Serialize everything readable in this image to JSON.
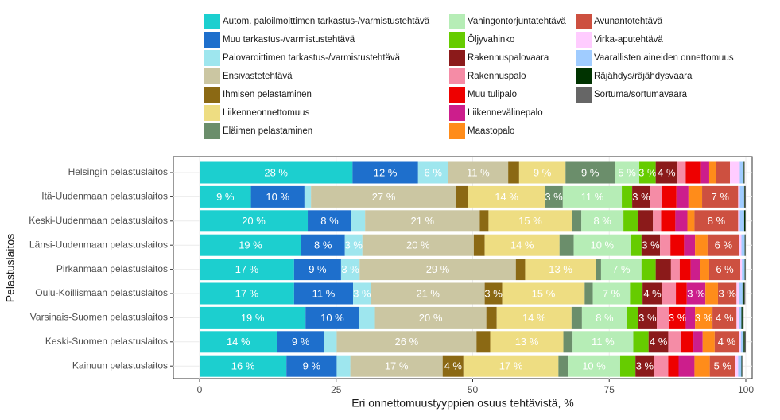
{
  "chart_data": {
    "type": "stacked-barh",
    "x_label": "Eri onnettomuustyyppien osuus tehtävistä, %",
    "y_label": "Pelastuslaitos",
    "legend": "top",
    "grid": true,
    "xlim": [
      0,
      100
    ],
    "xticks": [
      0,
      25,
      50,
      75,
      100
    ],
    "categories": [
      "Helsingin pelastuslaitos",
      "Itä-Uudenmaan pelastuslaitos",
      "Keski-Uudenmaan pelastuslaitos",
      "Länsi-Uudenmaan pelastuslaitos",
      "Pirkanmaan pelastuslaitos",
      "Oulu-Koillismaan pelastuslaitos",
      "Varsinais-Suomen pelastuslaitos",
      "Keski-Suomen pelastuslaitos",
      "Kainuun pelastuslaitos"
    ],
    "series": [
      {
        "name": "Autom. paloilmoittimen tarkastus-/varmistustehtävä",
        "color": "#1ccfcf",
        "values": [
          28,
          9.4,
          19.8,
          18.6,
          17.3,
          17.3,
          19.4,
          14.2,
          15.9
        ],
        "value_labels": [
          "28 %",
          "9 %",
          "20 %",
          "19 %",
          "17 %",
          "17 %",
          "19 %",
          "14 %",
          "16 %"
        ]
      },
      {
        "name": "Muu tarkastus-/varmistustehtävä",
        "color": "#1e6fcc",
        "values": [
          12,
          9.8,
          8,
          8,
          8.6,
          10.8,
          9.8,
          8.6,
          9.2
        ],
        "value_labels": [
          "12 %",
          "10 %",
          "8 %",
          "8 %",
          "9 %",
          "11 %",
          "10 %",
          "9 %",
          "9 %"
        ]
      },
      {
        "name": "Palovaroittimen tarkastus-/varmistustehtävä",
        "color": "#9ee6ee",
        "values": [
          5.5,
          1.2,
          2.5,
          3.2,
          3.4,
          3.3,
          2.9,
          2.3,
          2.5
        ],
        "value_labels": [
          "6 %",
          null,
          null,
          "3 %",
          "3 %",
          "3 %",
          null,
          null,
          null
        ]
      },
      {
        "name": "Ensivastetehtävä",
        "color": "#cbc6a2",
        "values": [
          11,
          26.6,
          21,
          20.4,
          28.6,
          20.8,
          20.4,
          25.6,
          16.9
        ],
        "value_labels": [
          "11 %",
          "27 %",
          "21 %",
          "20 %",
          "29 %",
          "21 %",
          "20 %",
          "26 %",
          "17 %"
        ]
      },
      {
        "name": "Ihmisen pelastaminen",
        "color": "#8b6914",
        "values": [
          2,
          2.2,
          1.6,
          2,
          1.7,
          3.2,
          1.9,
          2.5,
          3.8
        ],
        "value_labels": [
          null,
          null,
          null,
          null,
          null,
          "3 %",
          null,
          null,
          "4 %"
        ]
      },
      {
        "name": "Liikenneonnettomuus",
        "color": "#eedd82",
        "values": [
          8.5,
          14,
          15.3,
          13.7,
          13,
          15.1,
          13.7,
          13.4,
          17.4
        ],
        "value_labels": [
          "9 %",
          "14 %",
          "15 %",
          "14 %",
          "13 %",
          "15 %",
          "14 %",
          "13 %",
          "17 %"
        ]
      },
      {
        "name": "Eläimen pelastaminen",
        "color": "#6b8e6b",
        "values": [
          9,
          3.3,
          1.7,
          2.6,
          0.9,
          1.5,
          1.9,
          1.7,
          1.7
        ],
        "value_labels": [
          "9 %",
          "3 %",
          null,
          null,
          null,
          null,
          null,
          null,
          null
        ]
      },
      {
        "name": "Vahingontorjuntatehtävä",
        "color": "#b6edb6",
        "values": [
          4.5,
          10.8,
          7.7,
          10.4,
          7.4,
          6.8,
          8.3,
          11.1,
          9.6
        ],
        "value_labels": [
          "5 %",
          "11 %",
          "8 %",
          "10 %",
          "7 %",
          "7 %",
          "8 %",
          "11 %",
          "10 %"
        ]
      },
      {
        "name": "Öljyvahinko",
        "color": "#66cc00",
        "values": [
          3,
          1.9,
          2.6,
          2,
          2.6,
          2.3,
          2,
          2.8,
          2.8
        ],
        "value_labels": [
          "3 %",
          null,
          null,
          null,
          null,
          null,
          null,
          null,
          null
        ]
      },
      {
        "name": "Rakennuspalovaara",
        "color": "#8b1a1a",
        "values": [
          4,
          3.3,
          2.8,
          3.4,
          2.8,
          3.6,
          3.4,
          3.6,
          3.4
        ],
        "value_labels": [
          "4 %",
          "3 %",
          null,
          "3 %",
          null,
          "4 %",
          "3 %",
          "4 %",
          "3 %"
        ]
      },
      {
        "name": "Rakennuspalo",
        "color": "#f58ca6",
        "values": [
          1.5,
          2.2,
          1.5,
          1.9,
          1.6,
          2.5,
          2.3,
          2.3,
          2.6
        ]
      },
      {
        "name": "Muu tulipalo",
        "color": "#ee0000",
        "values": [
          2.8,
          2.6,
          2.6,
          2.5,
          2,
          2,
          3,
          2.3,
          1.9
        ],
        "value_labels": [
          null,
          null,
          null,
          null,
          null,
          null,
          "3 %",
          null,
          null
        ]
      },
      {
        "name": "Liikennevälinepalo",
        "color": "#cc1e8c",
        "values": [
          1.5,
          2.2,
          2.2,
          2,
          1.7,
          3.4,
          1.7,
          1.7,
          2.9
        ],
        "value_labels": [
          null,
          null,
          null,
          null,
          null,
          "3 %",
          null,
          null,
          null
        ]
      },
      {
        "name": "Maastopalo",
        "color": "#ff8c1a",
        "values": [
          1.2,
          2.5,
          1.3,
          2.3,
          1.7,
          2.3,
          3.2,
          2.2,
          2.8
        ],
        "value_labels": [
          null,
          null,
          null,
          null,
          null,
          null,
          "3 %",
          null,
          null
        ]
      },
      {
        "name": "Avunantotehtävä",
        "color": "#cd5040",
        "values": [
          2.6,
          6.6,
          8,
          5.8,
          5.7,
          3.4,
          4.4,
          4.4,
          4.7
        ],
        "value_labels": [
          null,
          "7 %",
          "8 %",
          "6 %",
          "6 %",
          "3 %",
          "4 %",
          "4 %",
          "5 %"
        ]
      },
      {
        "name": "Virka-aputehtävä",
        "color": "#ffccff",
        "values": [
          1.8,
          0.3,
          0.3,
          0.4,
          0.3,
          0.5,
          0.4,
          0.4,
          0.5
        ]
      },
      {
        "name": "Vaarallisten aineiden onnettomuus",
        "color": "#a0ccff",
        "values": [
          0.7,
          0.8,
          0.8,
          0.6,
          0.5,
          0.6,
          0.5,
          0.5,
          0.6
        ]
      },
      {
        "name": "Räjähdys/räjähdysvaara",
        "color": "#003300",
        "values": [
          0.1,
          0.1,
          0.2,
          0.1,
          0.1,
          0.3,
          0.2,
          0.2,
          0.1
        ]
      },
      {
        "name": "Sortuma/sortumavaara",
        "color": "#666666",
        "values": [
          0.1,
          0.2,
          0.1,
          0.1,
          0.1,
          0.2,
          0.2,
          0.2,
          0.1
        ]
      }
    ]
  }
}
